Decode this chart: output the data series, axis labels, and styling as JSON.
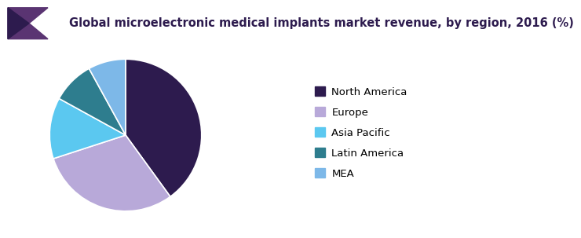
{
  "title": "Global microelectronic medical implants market revenue, by region, 2016 (%)",
  "segments": [
    {
      "label": "North America",
      "value": 40,
      "color": "#2d1b4e"
    },
    {
      "label": "Europe",
      "value": 30,
      "color": "#b8a9d9"
    },
    {
      "label": "Asia Pacific",
      "value": 13,
      "color": "#5bc8f0"
    },
    {
      "label": "Latin America",
      "value": 9,
      "color": "#2e7d8e"
    },
    {
      "label": "MEA",
      "value": 8,
      "color": "#7db8e8"
    }
  ],
  "title_fontsize": 10.5,
  "legend_fontsize": 9.5,
  "bg_color": "#ffffff",
  "title_color": "#2d1b4e",
  "header_bg": "#f5f3f8",
  "header_line_color": "#7b5ea7",
  "startangle": 90
}
